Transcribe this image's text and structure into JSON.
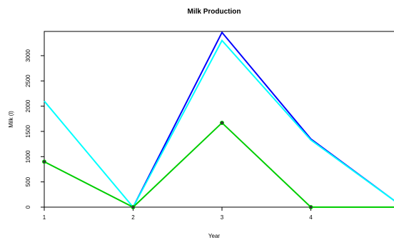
{
  "chart_data": {
    "type": "line",
    "title": "Milk Production",
    "x_label": "Year",
    "y_label": "Milk (l)",
    "x": [
      1,
      2,
      3,
      4,
      5
    ],
    "series": [
      {
        "color": "#0000ff",
        "values": [
          null,
          0,
          3460,
          1350,
          50
        ]
      },
      {
        "color": "#00ffff",
        "values": [
          2100,
          0,
          3300,
          1330,
          50
        ]
      },
      {
        "color": "#00cd00",
        "values": [
          900,
          0,
          1670,
          0,
          0
        ],
        "markers": true
      }
    ],
    "xlim": [
      1,
      5
    ],
    "ylim": [
      0,
      3480
    ],
    "xticks": [
      1,
      2,
      3,
      4
    ],
    "yticks": [
      0,
      500,
      1000,
      1500,
      2000,
      2500,
      3000
    ]
  }
}
